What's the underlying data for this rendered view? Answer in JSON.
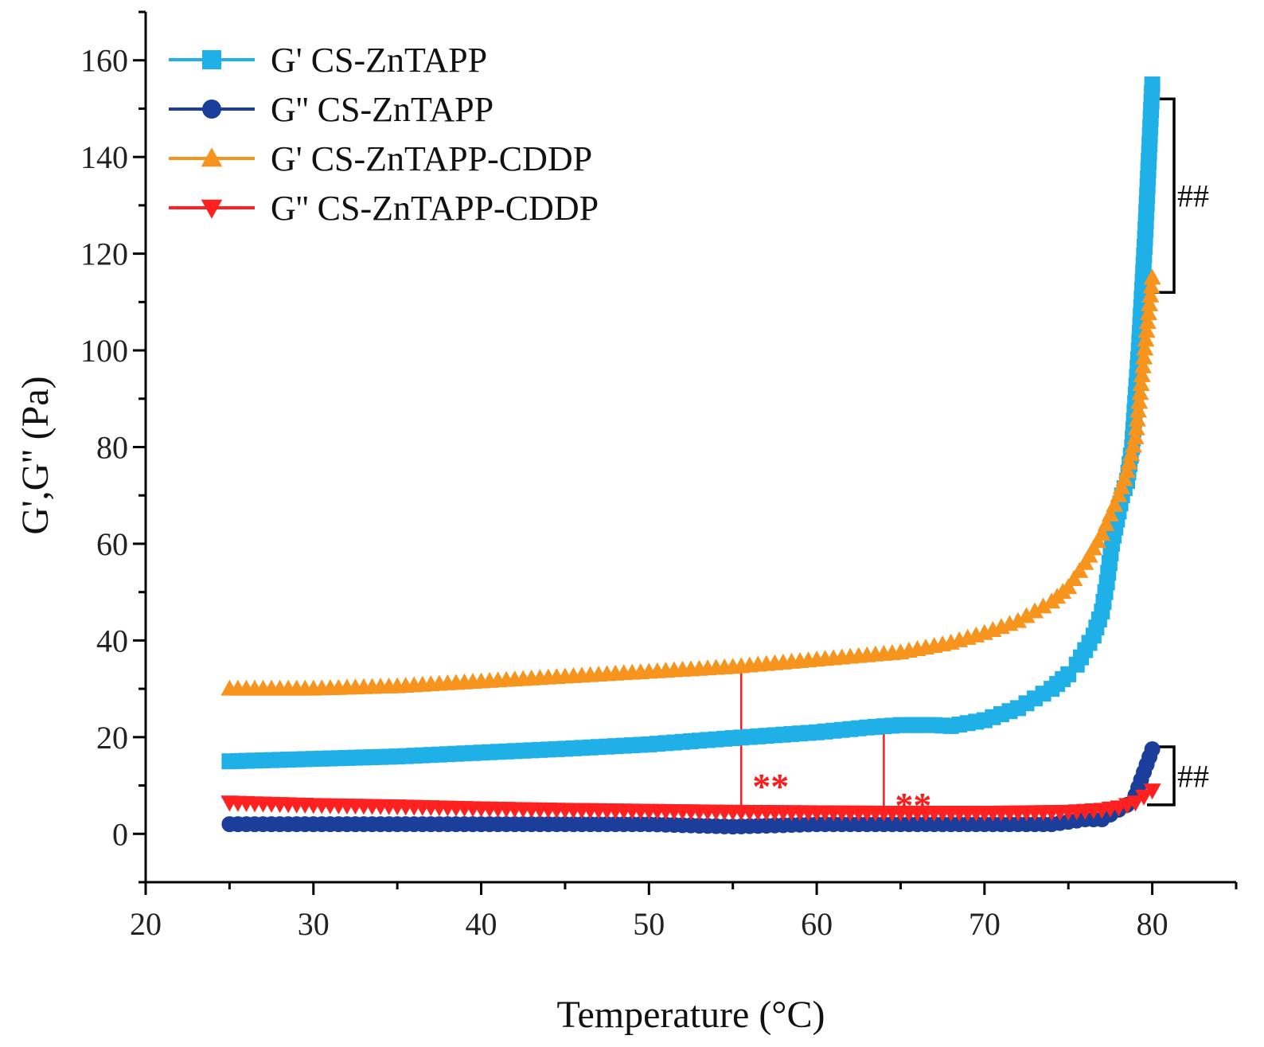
{
  "chart_data": {
    "type": "scatter",
    "xlabel": "Temperature (°C)",
    "ylabel": "G',G'' (Pa)",
    "xlim": [
      20,
      85
    ],
    "ylim": [
      -10,
      170
    ],
    "x_ticks": [
      20,
      30,
      40,
      50,
      60,
      70,
      80
    ],
    "y_ticks": [
      0,
      20,
      40,
      60,
      80,
      100,
      120,
      140,
      160
    ],
    "grid": false,
    "legend_position": "top-left",
    "series": [
      {
        "name": "G' CS-ZnTAPP",
        "color": "#20b0e8",
        "marker": "square",
        "x": [
          25,
          30,
          35,
          40,
          45,
          50,
          55,
          60,
          63,
          65,
          67,
          68,
          70,
          72,
          73,
          74,
          75,
          75.5,
          76,
          76.5,
          77,
          77.3,
          77.6,
          77.9,
          78.2,
          78.5,
          78.8,
          79.2,
          79.6,
          80
        ],
        "y": [
          15,
          15.5,
          16,
          16.8,
          17.6,
          18.5,
          19.8,
          21,
          22,
          22.5,
          22.5,
          22.3,
          23.5,
          26,
          28,
          30,
          33,
          35,
          38,
          41,
          46,
          52,
          60,
          65,
          70,
          73,
          80,
          100,
          125,
          155
        ]
      },
      {
        "name": "G'' CS-ZnTAPP",
        "color": "#1a3e9a",
        "marker": "circle",
        "x": [
          25,
          30,
          35,
          40,
          45,
          50,
          55,
          60,
          65,
          70,
          73,
          74,
          75,
          76,
          77,
          77.5,
          78,
          78.5,
          79,
          80
        ],
        "y": [
          2,
          2,
          2,
          2,
          2,
          2,
          1.5,
          2,
          2,
          2,
          2,
          2,
          2.5,
          3,
          3,
          4,
          5,
          6,
          8,
          17.5
        ]
      },
      {
        "name": "G' CS-ZnTAPP-CDDP",
        "color": "#f7941d",
        "marker": "triangle-up",
        "x": [
          25,
          30,
          35,
          40,
          45,
          50,
          55,
          60,
          65,
          68,
          70,
          72,
          73,
          74,
          75,
          76,
          77,
          77.5,
          78,
          78.5,
          79,
          80
        ],
        "y": [
          30,
          30,
          30.5,
          31.5,
          32.5,
          33.5,
          34.5,
          36,
          37.5,
          39.5,
          41.5,
          44,
          46,
          48,
          51,
          56,
          62,
          66,
          70,
          75,
          82,
          115
        ]
      },
      {
        "name": "G'' CS-ZnTAPP-CDDP",
        "color": "#ff2020",
        "marker": "triangle-down",
        "x": [
          25,
          30,
          35,
          40,
          45,
          50,
          55,
          60,
          65,
          70,
          75,
          77,
          78,
          78.5,
          79,
          80
        ],
        "y": [
          6.5,
          6,
          5.7,
          5.3,
          5,
          4.8,
          4.6,
          4.5,
          4.4,
          4.4,
          4.6,
          5,
          5.5,
          6,
          6.5,
          9
        ]
      }
    ],
    "annotations": [
      {
        "text": "**",
        "color": "#ff1a1a",
        "x": 55.5,
        "y_range": [
          5,
          33.5
        ]
      },
      {
        "text": "**",
        "color": "#ff1a1a",
        "x": 64,
        "y_range": [
          1,
          22.5
        ]
      },
      {
        "text": "##",
        "color": "#000000",
        "x": 81.3,
        "y_range": [
          112,
          152
        ]
      },
      {
        "text": "##",
        "color": "#000000",
        "x": 81.3,
        "y_range": [
          6,
          18
        ]
      }
    ]
  }
}
